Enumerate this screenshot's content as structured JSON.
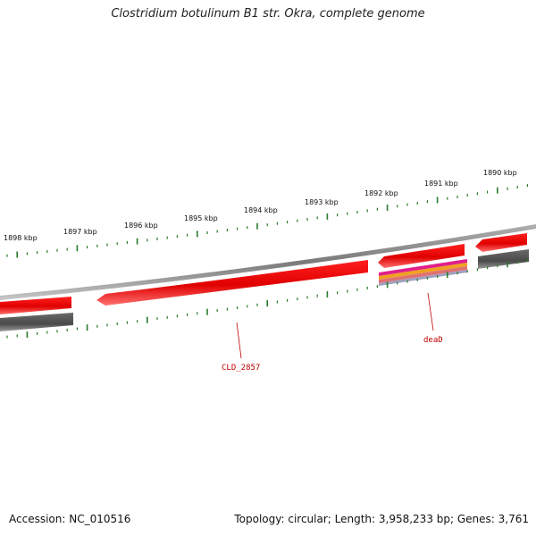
{
  "title": "Clostridium botulinum B1 str. Okra, complete genome",
  "footer": {
    "accession": "Accession: NC_010516",
    "stats": "Topology: circular; Length: 3,958,233 bp; Genes: 3,761"
  },
  "scale_labels": [
    "1898 kbp",
    "1897 kbp",
    "1896 kbp",
    "1895 kbp",
    "1894 kbp",
    "1893 kbp",
    "1892 kbp",
    "1891 kbp",
    "1890 kbp"
  ],
  "gene_labels": {
    "cld": "CLD_2857",
    "dead": "deaD"
  },
  "colors": {
    "cds": "#ff0000",
    "gene_grey": "#555555",
    "backbone": "#8a8a8a",
    "ticks": "#2a7a2a",
    "label": "#c00000",
    "rrna_magenta": "#e0208a",
    "rrna_orange": "#f0a020"
  }
}
